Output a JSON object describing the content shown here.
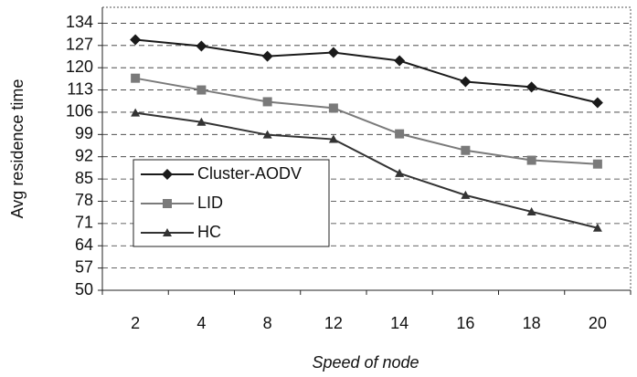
{
  "chart_data": {
    "type": "line",
    "x_label": "Speed of node",
    "y_label": "Avg residence time",
    "categories": [
      "2",
      "4",
      "8",
      "12",
      "14",
      "16",
      "18",
      "20"
    ],
    "series": [
      {
        "name": "Cluster-AODV",
        "color": "#1a1a1a",
        "marker": "diamond",
        "values": [
          128.8,
          126.8,
          123.6,
          124.8,
          122.2,
          115.6,
          113.9,
          109
        ]
      },
      {
        "name": "LID",
        "color": "#7a7a7a",
        "marker": "square",
        "values": [
          116.7,
          113,
          109.3,
          107.3,
          99.2,
          94,
          90.9,
          89.7
        ]
      },
      {
        "name": "HC",
        "color": "#333333",
        "marker": "triangle",
        "values": [
          105.8,
          102.9,
          98.9,
          97.5,
          86.8,
          79.9,
          74.7,
          69.6
        ]
      }
    ],
    "ylim": [
      50,
      139
    ],
    "yticks": [
      50,
      57,
      64,
      71,
      78,
      85,
      92,
      99,
      106,
      113,
      120,
      127,
      134
    ],
    "grid": true,
    "legend": "lower-left"
  }
}
